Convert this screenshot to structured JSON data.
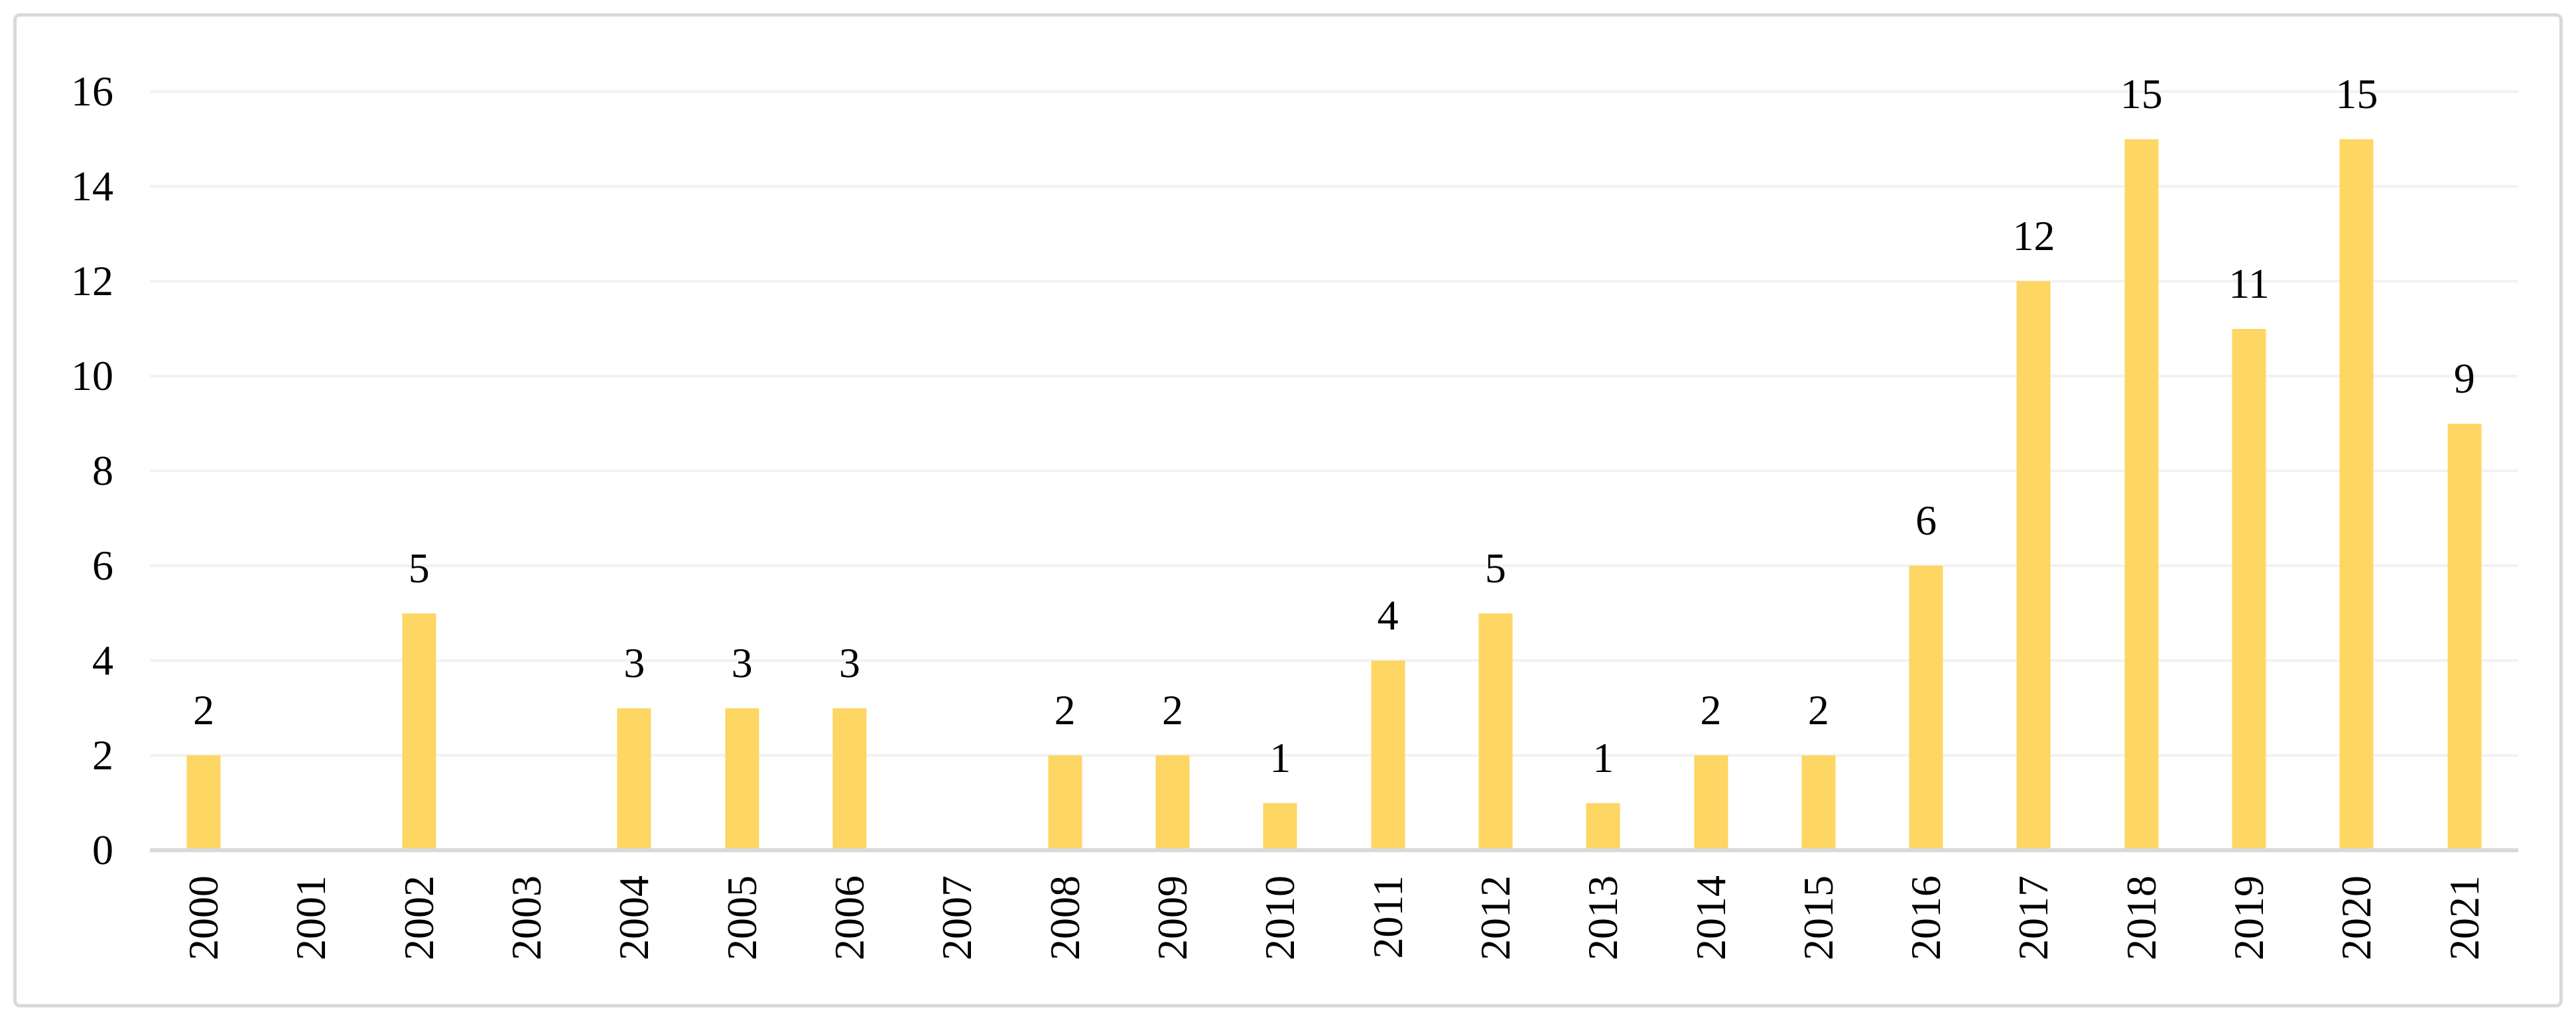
{
  "chart_data": {
    "type": "bar",
    "title": "",
    "xlabel": "",
    "ylabel": "",
    "categories": [
      "2000",
      "2001",
      "2002",
      "2003",
      "2004",
      "2005",
      "2006",
      "2007",
      "2008",
      "2009",
      "2010",
      "2011",
      "2012",
      "2013",
      "2014",
      "2015",
      "2016",
      "2017",
      "2018",
      "2019",
      "2020",
      "2021"
    ],
    "values": [
      2,
      0,
      5,
      0,
      3,
      3,
      3,
      0,
      2,
      2,
      1,
      4,
      5,
      1,
      2,
      2,
      6,
      12,
      15,
      11,
      15,
      9
    ],
    "data_labels_shown": true,
    "data_labels_hidden_for_zero": true,
    "ylim": [
      0,
      16
    ],
    "yticks": [
      0,
      2,
      4,
      6,
      8,
      10,
      12,
      14,
      16
    ],
    "grid": true,
    "grid_orientation": "horizontal",
    "legend_position": "none",
    "x_label_rotation_degrees": -90,
    "colors": {
      "bar": "#fdd663",
      "gridline": "#f2f2f2",
      "axis_line": "#d9d9d9",
      "frame_border": "#d9d9d9",
      "text": "#000000",
      "background": "#ffffff"
    }
  }
}
